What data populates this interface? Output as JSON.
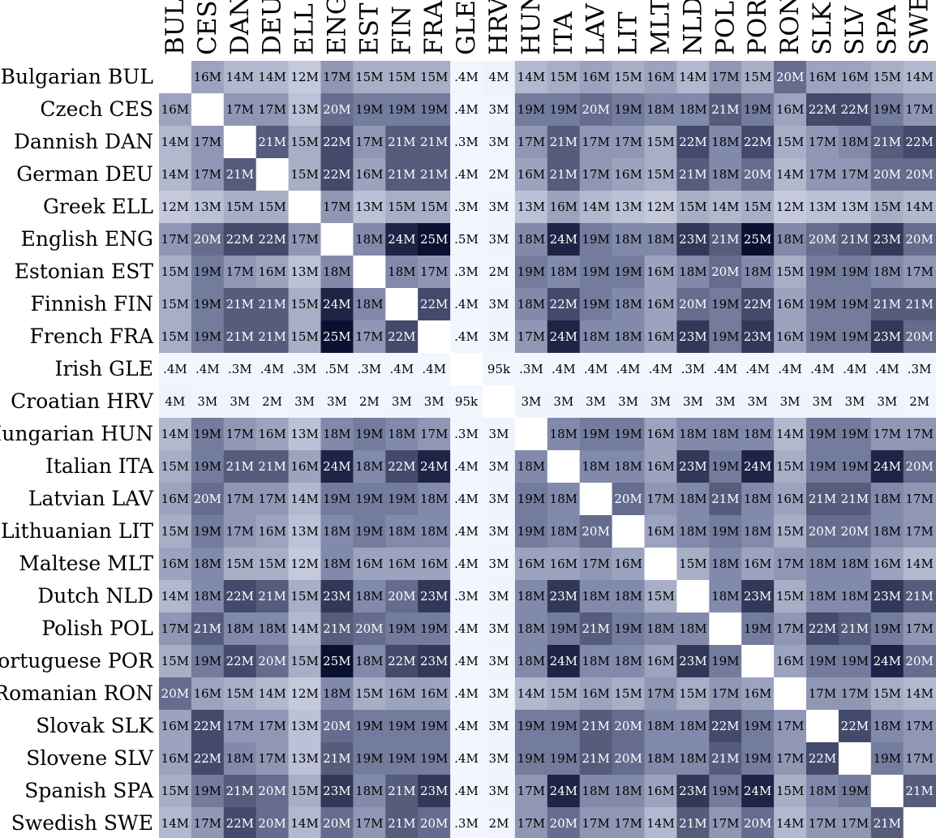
{
  "chart_data": {
    "type": "heatmap",
    "title": "",
    "xlabel": "",
    "ylabel": "",
    "colors": {
      "low": "#f2f6ff",
      "mid": "#7f87a8",
      "high": "#0a1030",
      "diagonal": "#ffffff"
    },
    "columns": [
      "BUL",
      "CES",
      "DAN",
      "DEU",
      "ELL",
      "ENG",
      "EST",
      "FIN",
      "FRA",
      "GLE",
      "HRV",
      "HUN",
      "ITA",
      "LAV",
      "LIT",
      "MLT",
      "NLD",
      "POL",
      "POR",
      "RON",
      "SLK",
      "SLV",
      "SPA",
      "SWE"
    ],
    "rows": [
      "Bulgarian BUL",
      "Czech CES",
      "Dannish DAN",
      "German DEU",
      "Greek ELL",
      "English ENG",
      "Estonian EST",
      "Finnish FIN",
      "French FRA",
      "Irish GLE",
      "Croatian HRV",
      "Hungarian HUN",
      "Italian ITA",
      "Latvian LAV",
      "Lithuanian LIT",
      "Maltese MLT",
      "Dutch NLD",
      "Polish POL",
      "Portuguese POR",
      "Romanian RON",
      "Slovak SLK",
      "Slovene SLV",
      "Spanish SPA",
      "Swedish SWE"
    ],
    "labels": [
      [
        "",
        "16M",
        "14M",
        "14M",
        "12M",
        "17M",
        "15M",
        "15M",
        "15M",
        ".4M",
        "4M",
        "14M",
        "15M",
        "16M",
        "15M",
        "16M",
        "14M",
        "17M",
        "15M",
        "20M",
        "16M",
        "16M",
        "15M",
        "14M"
      ],
      [
        "16M",
        "",
        "17M",
        "17M",
        "13M",
        "20M",
        "19M",
        "19M",
        "19M",
        ".4M",
        "3M",
        "19M",
        "19M",
        "20M",
        "19M",
        "18M",
        "18M",
        "21M",
        "19M",
        "16M",
        "22M",
        "22M",
        "19M",
        "17M"
      ],
      [
        "14M",
        "17M",
        "",
        "21M",
        "15M",
        "22M",
        "17M",
        "21M",
        "21M",
        ".3M",
        "3M",
        "17M",
        "21M",
        "17M",
        "17M",
        "15M",
        "22M",
        "18M",
        "22M",
        "15M",
        "17M",
        "18M",
        "21M",
        "22M"
      ],
      [
        "14M",
        "17M",
        "21M",
        "",
        "15M",
        "22M",
        "16M",
        "21M",
        "21M",
        ".4M",
        "2M",
        "16M",
        "21M",
        "17M",
        "16M",
        "15M",
        "21M",
        "18M",
        "20M",
        "14M",
        "17M",
        "17M",
        "20M",
        "20M"
      ],
      [
        "12M",
        "13M",
        "15M",
        "15M",
        "",
        "17M",
        "13M",
        "15M",
        "15M",
        ".3M",
        "3M",
        "13M",
        "16M",
        "14M",
        "13M",
        "12M",
        "15M",
        "14M",
        "15M",
        "12M",
        "13M",
        "13M",
        "15M",
        "14M"
      ],
      [
        "17M",
        "20M",
        "22M",
        "22M",
        "17M",
        "",
        "18M",
        "24M",
        "25M",
        ".5M",
        "3M",
        "18M",
        "24M",
        "19M",
        "18M",
        "18M",
        "23M",
        "21M",
        "25M",
        "18M",
        "20M",
        "21M",
        "23M",
        "20M"
      ],
      [
        "15M",
        "19M",
        "17M",
        "16M",
        "13M",
        "18M",
        "",
        "18M",
        "17M",
        ".3M",
        "2M",
        "19M",
        "18M",
        "19M",
        "19M",
        "16M",
        "18M",
        "20M",
        "18M",
        "15M",
        "19M",
        "19M",
        "18M",
        "17M"
      ],
      [
        "15M",
        "19M",
        "21M",
        "21M",
        "15M",
        "24M",
        "18M",
        "",
        "22M",
        ".4M",
        "3M",
        "18M",
        "22M",
        "19M",
        "18M",
        "16M",
        "20M",
        "19M",
        "22M",
        "16M",
        "19M",
        "19M",
        "21M",
        "21M"
      ],
      [
        "15M",
        "19M",
        "21M",
        "21M",
        "15M",
        "25M",
        "17M",
        "22M",
        "",
        ".4M",
        "3M",
        "17M",
        "24M",
        "18M",
        "18M",
        "16M",
        "23M",
        "19M",
        "23M",
        "16M",
        "19M",
        "19M",
        "23M",
        "20M"
      ],
      [
        ".4M",
        ".4M",
        ".3M",
        ".4M",
        ".3M",
        ".5M",
        ".3M",
        ".4M",
        ".4M",
        "",
        "95k",
        ".3M",
        ".4M",
        ".4M",
        ".4M",
        ".4M",
        ".3M",
        ".4M",
        ".4M",
        ".4M",
        ".4M",
        ".4M",
        ".4M",
        ".3M"
      ],
      [
        "4M",
        "3M",
        "3M",
        "2M",
        "3M",
        "3M",
        "2M",
        "3M",
        "3M",
        "95k",
        "",
        "3M",
        "3M",
        "3M",
        "3M",
        "3M",
        "3M",
        "3M",
        "3M",
        "3M",
        "3M",
        "3M",
        "3M",
        "2M"
      ],
      [
        "14M",
        "19M",
        "17M",
        "16M",
        "13M",
        "18M",
        "19M",
        "18M",
        "17M",
        ".3M",
        "3M",
        "",
        "18M",
        "19M",
        "19M",
        "16M",
        "18M",
        "18M",
        "18M",
        "14M",
        "19M",
        "19M",
        "17M",
        "17M"
      ],
      [
        "15M",
        "19M",
        "21M",
        "21M",
        "16M",
        "24M",
        "18M",
        "22M",
        "24M",
        ".4M",
        "3M",
        "18M",
        "",
        "18M",
        "18M",
        "16M",
        "23M",
        "19M",
        "24M",
        "15M",
        "19M",
        "19M",
        "24M",
        "20M"
      ],
      [
        "16M",
        "20M",
        "17M",
        "17M",
        "14M",
        "19M",
        "19M",
        "19M",
        "18M",
        ".4M",
        "3M",
        "19M",
        "18M",
        "",
        "20M",
        "17M",
        "18M",
        "21M",
        "18M",
        "16M",
        "21M",
        "21M",
        "18M",
        "17M"
      ],
      [
        "15M",
        "19M",
        "17M",
        "16M",
        "13M",
        "18M",
        "19M",
        "18M",
        "18M",
        ".4M",
        "3M",
        "19M",
        "18M",
        "20M",
        "",
        "16M",
        "18M",
        "19M",
        "18M",
        "15M",
        "20M",
        "20M",
        "18M",
        "17M"
      ],
      [
        "16M",
        "18M",
        "15M",
        "15M",
        "12M",
        "18M",
        "16M",
        "16M",
        "16M",
        ".4M",
        "3M",
        "16M",
        "16M",
        "17M",
        "16M",
        "",
        "15M",
        "18M",
        "16M",
        "17M",
        "18M",
        "18M",
        "16M",
        "14M"
      ],
      [
        "14M",
        "18M",
        "22M",
        "21M",
        "15M",
        "23M",
        "18M",
        "20M",
        "23M",
        ".3M",
        "3M",
        "18M",
        "23M",
        "18M",
        "18M",
        "15M",
        "",
        "18M",
        "23M",
        "15M",
        "18M",
        "18M",
        "23M",
        "21M"
      ],
      [
        "17M",
        "21M",
        "18M",
        "18M",
        "14M",
        "21M",
        "20M",
        "19M",
        "19M",
        ".4M",
        "3M",
        "18M",
        "19M",
        "21M",
        "19M",
        "18M",
        "18M",
        "",
        "19M",
        "17M",
        "22M",
        "21M",
        "19M",
        "17M"
      ],
      [
        "15M",
        "19M",
        "22M",
        "20M",
        "15M",
        "25M",
        "18M",
        "22M",
        "23M",
        ".4M",
        "3M",
        "18M",
        "24M",
        "18M",
        "18M",
        "16M",
        "23M",
        "19M",
        "",
        "16M",
        "19M",
        "19M",
        "24M",
        "20M"
      ],
      [
        "20M",
        "16M",
        "15M",
        "14M",
        "12M",
        "18M",
        "15M",
        "16M",
        "16M",
        ".4M",
        "3M",
        "14M",
        "15M",
        "16M",
        "15M",
        "17M",
        "15M",
        "17M",
        "16M",
        "",
        "17M",
        "17M",
        "15M",
        "14M"
      ],
      [
        "16M",
        "22M",
        "17M",
        "17M",
        "13M",
        "20M",
        "19M",
        "19M",
        "19M",
        ".4M",
        "3M",
        "19M",
        "19M",
        "21M",
        "20M",
        "18M",
        "18M",
        "22M",
        "19M",
        "17M",
        "",
        "22M",
        "18M",
        "17M"
      ],
      [
        "16M",
        "22M",
        "18M",
        "17M",
        "13M",
        "21M",
        "19M",
        "19M",
        "19M",
        ".4M",
        "3M",
        "19M",
        "19M",
        "21M",
        "20M",
        "18M",
        "18M",
        "21M",
        "19M",
        "17M",
        "22M",
        "",
        "19M",
        "17M"
      ],
      [
        "15M",
        "19M",
        "21M",
        "20M",
        "15M",
        "23M",
        "18M",
        "21M",
        "23M",
        ".4M",
        "3M",
        "17M",
        "24M",
        "18M",
        "18M",
        "16M",
        "23M",
        "19M",
        "24M",
        "15M",
        "18M",
        "19M",
        "",
        "21M"
      ],
      [
        "14M",
        "17M",
        "22M",
        "20M",
        "14M",
        "20M",
        "17M",
        "21M",
        "20M",
        ".3M",
        "2M",
        "17M",
        "20M",
        "17M",
        "17M",
        "14M",
        "21M",
        "17M",
        "20M",
        "14M",
        "17M",
        "17M",
        "21M",
        ""
      ]
    ]
  }
}
